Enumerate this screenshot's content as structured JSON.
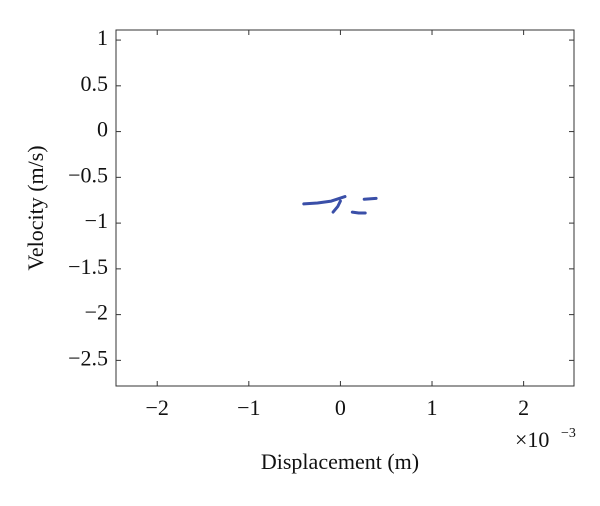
{
  "chart_data": {
    "type": "line",
    "xlabel": "Displacement (m)",
    "ylabel": "Velocity (m/s)",
    "x_offset_text": {
      "base": "×10",
      "exponent": "−3"
    },
    "x": [
      -0.4,
      -0.25,
      -0.1,
      0.05,
      null,
      -0.08,
      -0.03,
      0.0,
      null,
      0.26,
      0.39,
      null,
      0.13,
      0.2,
      0.27
    ],
    "values": [
      -0.79,
      -0.78,
      -0.76,
      -0.71,
      null,
      -0.88,
      -0.82,
      -0.76,
      null,
      -0.74,
      -0.73,
      null,
      -0.88,
      -0.89,
      -0.89
    ],
    "color": "#3a4fa8",
    "xlim": [
      -2.45,
      2.55
    ],
    "xticks": [
      {
        "value": -2,
        "label": "−2"
      },
      {
        "value": -1,
        "label": "−1"
      },
      0,
      1,
      2
    ],
    "ylim": [
      -2.78,
      1.11
    ],
    "yticks": [
      1,
      0.5,
      0,
      {
        "value": -0.5,
        "label": "−0.5"
      },
      {
        "value": -1,
        "label": "−1"
      },
      {
        "value": -1.5,
        "label": "−1.5"
      },
      {
        "value": -2,
        "label": "−2"
      },
      {
        "value": -2.5,
        "label": "−2.5"
      }
    ]
  }
}
